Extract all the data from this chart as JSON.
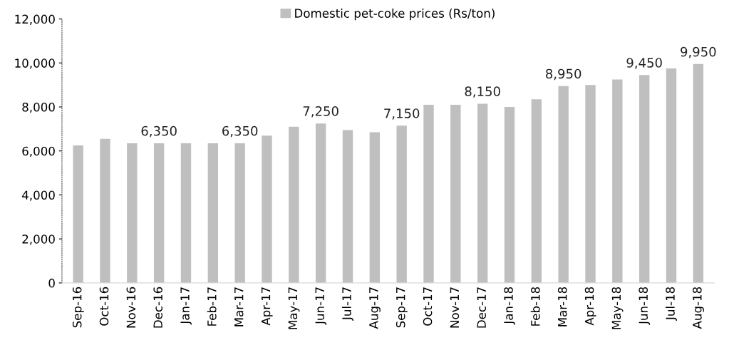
{
  "chart_data": {
    "type": "bar",
    "categories": [
      "Sep-16",
      "Oct-16",
      "Nov-16",
      "Dec-16",
      "Jan-17",
      "Feb-17",
      "Mar-17",
      "Apr-17",
      "May-17",
      "Jun-17",
      "Jul-17",
      "Aug-17",
      "Sep-17",
      "Oct-17",
      "Nov-17",
      "Dec-17",
      "Jan-18",
      "Feb-18",
      "Mar-18",
      "Apr-18",
      "May-18",
      "Jun-18",
      "Jul-18",
      "Aug-18"
    ],
    "series": [
      {
        "name": "Domestic pet-coke prices (Rs/ton)",
        "color": "#bfbfbf",
        "values": [
          6250,
          6550,
          6350,
          6350,
          6350,
          6350,
          6350,
          6700,
          7100,
          7250,
          6950,
          6850,
          7150,
          8100,
          8100,
          8150,
          8000,
          8350,
          8950,
          9000,
          9250,
          9450,
          9750,
          9950
        ],
        "value_labels": [
          null,
          null,
          null,
          "6,350",
          null,
          null,
          "6,350",
          null,
          null,
          "7,250",
          null,
          null,
          "7,150",
          null,
          null,
          "8,150",
          null,
          null,
          "8,950",
          null,
          null,
          "9,450",
          null,
          "9,950"
        ]
      }
    ],
    "ylim": [
      0,
      12000
    ],
    "yticks": [
      {
        "value": 0,
        "label": "0"
      },
      {
        "value": 2000,
        "label": "2,000"
      },
      {
        "value": 4000,
        "label": "4,000"
      },
      {
        "value": 6000,
        "label": "6,000"
      },
      {
        "value": 8000,
        "label": "8,000"
      },
      {
        "value": 10000,
        "label": "10,000"
      },
      {
        "value": 12000,
        "label": "12,000"
      }
    ],
    "grid": false,
    "legend": "top"
  }
}
